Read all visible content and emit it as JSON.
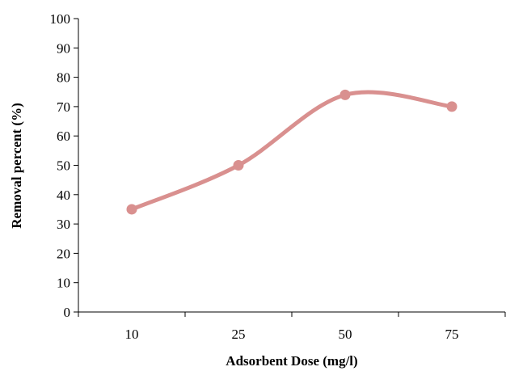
{
  "chart_data": {
    "type": "line",
    "title": "",
    "xlabel": "Adsorbent Dose (mg/l)",
    "ylabel": "Removal percent (%)",
    "categories": [
      "10",
      "25",
      "50",
      "75"
    ],
    "series": [
      {
        "values": [
          35,
          50,
          74,
          70
        ],
        "color": "#d9908f"
      }
    ],
    "ylim": [
      0,
      100
    ],
    "yticks": [
      0,
      10,
      20,
      30,
      40,
      50,
      60,
      70,
      80,
      90,
      100
    ],
    "grid": false,
    "smooth": true,
    "markers": true
  }
}
